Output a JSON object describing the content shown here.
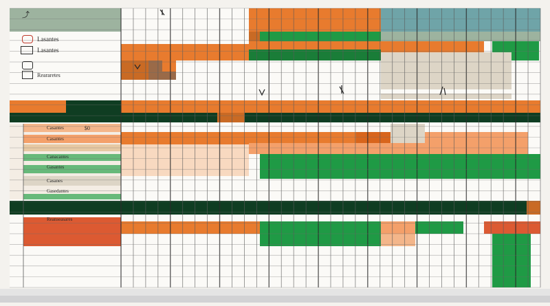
{
  "colors": {
    "orange": "#e87b2e",
    "orange_light": "#f4b68a",
    "peach": "#f8d9c0",
    "green": "#1f9a45",
    "green_light": "#67b97a",
    "dark_green": "#0f3d22",
    "teal": "#6fa4a8",
    "sage": "#9db39f",
    "beige": "#ddd5c6",
    "red": "#dc5a32",
    "paper": "#fbfaf7"
  },
  "sidebar": {
    "top_items": [
      {
        "icon": "key-icon",
        "label": ""
      },
      {
        "icon": "person-icon",
        "label": "Lasantes"
      },
      {
        "icon": "tag-icon",
        "label": "Lasantes"
      },
      {
        "icon": "calendar-icon",
        "label": ""
      },
      {
        "icon": "folder-icon",
        "label": "Reararetes"
      }
    ],
    "rows": [
      {
        "label": "Casantes",
        "value": "$0"
      },
      {
        "label": "Casantes",
        "value": ""
      },
      {
        "label": "Canacantes",
        "value": ""
      },
      {
        "label": "Gasantes",
        "value": ""
      },
      {
        "label": "Casanes",
        "value": ""
      },
      {
        "label": "Gasedantes",
        "value": ""
      }
    ],
    "bottom_label": "Reanseasares"
  },
  "grid": {
    "columns": 34,
    "rows": 26
  }
}
